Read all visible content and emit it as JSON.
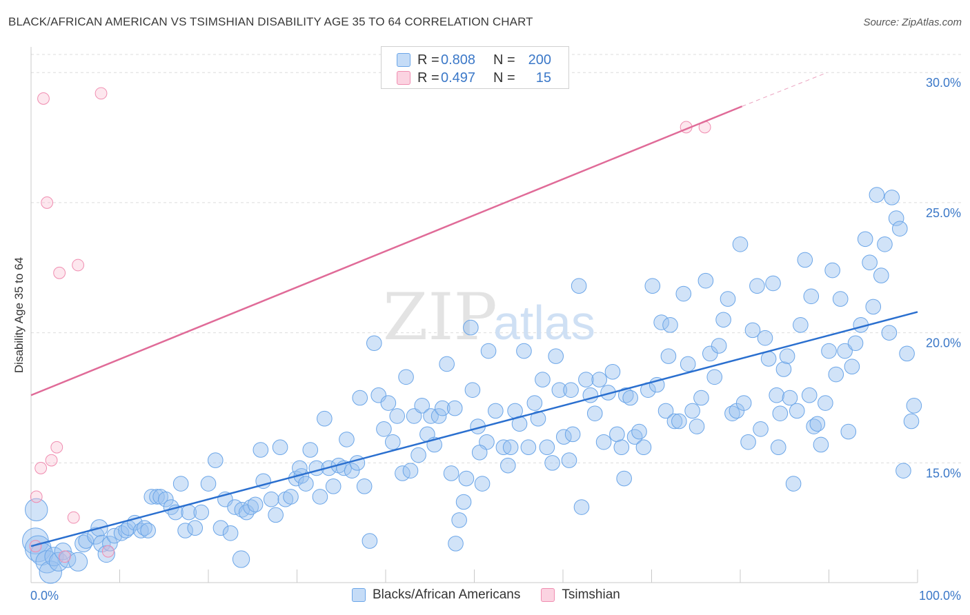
{
  "title": "BLACK/AFRICAN AMERICAN VS TSIMSHIAN DISABILITY AGE 35 TO 64 CORRELATION CHART",
  "source": "Source: ZipAtlas.com",
  "watermark": {
    "zip": "ZIP",
    "atlas": "atlas"
  },
  "legend": {
    "rows": [
      {
        "r_label": "R =",
        "r_value": "0.808",
        "n_label": "N =",
        "n_value": "200",
        "color": "#6aa5e8"
      },
      {
        "r_label": "R =",
        "r_value": "0.497",
        "n_label": "N =",
        "n_value": "15",
        "color": "#f08cb0"
      }
    ]
  },
  "bottom_legend": [
    "Blacks/African Americans",
    "Tsimshian"
  ],
  "chart_data": {
    "type": "scatter",
    "title": "BLACK/AFRICAN AMERICAN VS TSIMSHIAN DISABILITY AGE 35 TO 64 CORRELATION CHART",
    "xlabel": "",
    "ylabel": "Disability Age 35 to 64",
    "xlim": [
      0,
      100
    ],
    "ylim": [
      10.4,
      30.8
    ],
    "x_tick_labels": [
      "0.0%",
      "100.0%"
    ],
    "y_ticks": [
      15,
      20,
      25,
      30
    ],
    "y_tick_labels": [
      "15.0%",
      "20.0%",
      "25.0%",
      "30.0%"
    ],
    "grid": true,
    "legend_position": "top-center",
    "series": [
      {
        "name": "Blacks/African Americans",
        "color": "#6aa5e8",
        "r": 0.808,
        "n": 200,
        "trend": {
          "x": [
            0,
            100
          ],
          "y": [
            11.8,
            20.8
          ]
        },
        "points": [
          [
            0.5,
            12.0,
            14
          ],
          [
            0.8,
            11.7,
            14
          ],
          [
            1.2,
            11.5,
            12
          ],
          [
            1.8,
            11.2,
            12
          ],
          [
            2.2,
            10.8,
            12
          ],
          [
            2.6,
            11.4,
            10
          ],
          [
            3.1,
            11.2,
            10
          ],
          [
            3.6,
            11.6,
            9
          ],
          [
            4.1,
            11.3,
            9
          ],
          [
            5.3,
            11.2,
            10
          ],
          [
            0.6,
            13.2,
            12
          ],
          [
            5.9,
            11.9,
            9
          ],
          [
            6.2,
            12.0,
            8
          ],
          [
            7.3,
            12.2,
            9
          ],
          [
            7.7,
            12.5,
            9
          ],
          [
            8.0,
            11.9,
            9
          ],
          [
            8.5,
            11.5,
            9
          ],
          [
            8.9,
            11.9,
            8
          ],
          [
            9.4,
            12.2,
            8
          ],
          [
            10.2,
            12.3,
            8
          ],
          [
            10.7,
            12.4,
            8
          ],
          [
            11.0,
            12.5,
            8
          ],
          [
            11.7,
            12.7,
            8
          ],
          [
            12.4,
            12.4,
            8
          ],
          [
            12.8,
            12.5,
            8
          ],
          [
            13.2,
            12.4,
            8
          ],
          [
            13.6,
            13.7,
            8
          ],
          [
            14.2,
            13.7,
            8
          ],
          [
            14.6,
            13.7,
            8
          ],
          [
            15.2,
            13.6,
            8
          ],
          [
            15.8,
            13.3,
            8
          ],
          [
            16.3,
            13.1,
            8
          ],
          [
            16.9,
            14.2,
            8
          ],
          [
            17.4,
            12.4,
            8
          ],
          [
            17.8,
            13.1,
            8
          ],
          [
            18.5,
            12.5,
            8
          ],
          [
            19.2,
            13.1,
            8
          ],
          [
            20.0,
            14.2,
            8
          ],
          [
            20.8,
            15.1,
            8
          ],
          [
            21.4,
            12.5,
            8
          ],
          [
            21.9,
            13.6,
            8
          ],
          [
            22.5,
            12.3,
            8
          ],
          [
            23.0,
            13.3,
            8
          ],
          [
            23.8,
            13.2,
            8
          ],
          [
            24.3,
            13.1,
            8
          ],
          [
            24.8,
            13.3,
            8
          ],
          [
            25.3,
            13.4,
            8
          ],
          [
            25.9,
            15.5,
            8
          ],
          [
            26.2,
            14.3,
            8
          ],
          [
            27.1,
            13.6,
            8
          ],
          [
            27.6,
            13.0,
            8
          ],
          [
            28.1,
            15.6,
            8
          ],
          [
            28.7,
            13.6,
            8
          ],
          [
            29.3,
            13.7,
            8
          ],
          [
            29.9,
            14.4,
            8
          ],
          [
            30.5,
            14.5,
            8
          ],
          [
            31.0,
            14.2,
            8
          ],
          [
            31.5,
            15.5,
            8
          ],
          [
            32.2,
            14.8,
            8
          ],
          [
            32.6,
            13.7,
            8
          ],
          [
            33.1,
            16.7,
            8
          ],
          [
            33.6,
            14.8,
            8
          ],
          [
            34.1,
            14.1,
            8
          ],
          [
            34.7,
            14.9,
            8
          ],
          [
            35.3,
            14.8,
            8
          ],
          [
            35.6,
            15.9,
            8
          ],
          [
            36.2,
            14.7,
            8
          ],
          [
            36.8,
            15.0,
            8
          ],
          [
            37.1,
            17.5,
            8
          ],
          [
            37.6,
            14.1,
            8
          ],
          [
            38.2,
            12.0,
            8
          ],
          [
            38.7,
            19.6,
            8
          ],
          [
            39.2,
            17.6,
            8
          ],
          [
            39.8,
            16.3,
            8
          ],
          [
            40.3,
            17.3,
            8
          ],
          [
            40.8,
            15.8,
            8
          ],
          [
            41.3,
            16.8,
            8
          ],
          [
            41.9,
            14.6,
            8
          ],
          [
            42.3,
            18.3,
            8
          ],
          [
            42.8,
            14.7,
            8
          ],
          [
            43.2,
            16.8,
            8
          ],
          [
            43.7,
            15.3,
            8
          ],
          [
            44.1,
            17.2,
            8
          ],
          [
            44.7,
            16.1,
            8
          ],
          [
            45.1,
            16.8,
            8
          ],
          [
            45.5,
            15.7,
            8
          ],
          [
            46.0,
            16.8,
            8
          ],
          [
            46.4,
            17.1,
            8
          ],
          [
            46.9,
            18.8,
            8
          ],
          [
            47.4,
            14.6,
            8
          ],
          [
            47.8,
            17.1,
            8
          ],
          [
            48.3,
            12.8,
            8
          ],
          [
            48.8,
            13.5,
            8
          ],
          [
            49.1,
            14.4,
            8
          ],
          [
            49.6,
            20.2,
            8
          ],
          [
            49.8,
            17.8,
            8
          ],
          [
            50.4,
            16.4,
            8
          ],
          [
            50.9,
            14.2,
            8
          ],
          [
            51.4,
            15.8,
            8
          ],
          [
            51.6,
            19.3,
            8
          ],
          [
            52.4,
            17.0,
            8
          ],
          [
            53.3,
            15.6,
            8
          ],
          [
            53.8,
            14.9,
            8
          ],
          [
            54.1,
            15.6,
            8
          ],
          [
            54.6,
            17.0,
            8
          ],
          [
            55.1,
            16.5,
            8
          ],
          [
            55.6,
            19.3,
            8
          ],
          [
            56.1,
            15.6,
            8
          ],
          [
            56.8,
            17.3,
            8
          ],
          [
            57.2,
            16.7,
            8
          ],
          [
            57.7,
            18.2,
            8
          ],
          [
            58.2,
            15.6,
            8
          ],
          [
            58.8,
            15.0,
            8
          ],
          [
            59.2,
            19.1,
            8
          ],
          [
            59.6,
            17.8,
            8
          ],
          [
            60.1,
            16.0,
            8
          ],
          [
            60.7,
            15.1,
            8
          ],
          [
            61.1,
            16.1,
            8
          ],
          [
            61.8,
            21.8,
            8
          ],
          [
            62.1,
            13.3,
            8
          ],
          [
            62.6,
            18.2,
            8
          ],
          [
            63.1,
            17.6,
            8
          ],
          [
            63.6,
            16.9,
            8
          ],
          [
            64.1,
            18.2,
            8
          ],
          [
            64.6,
            15.8,
            8
          ],
          [
            65.1,
            17.7,
            8
          ],
          [
            65.6,
            18.5,
            8
          ],
          [
            66.1,
            16.1,
            8
          ],
          [
            66.6,
            15.6,
            8
          ],
          [
            67.1,
            17.6,
            8
          ],
          [
            67.6,
            17.5,
            8
          ],
          [
            68.1,
            16.0,
            8
          ],
          [
            68.6,
            16.2,
            8
          ],
          [
            69.1,
            15.6,
            8
          ],
          [
            69.6,
            17.8,
            8
          ],
          [
            70.1,
            21.8,
            8
          ],
          [
            70.6,
            18.0,
            8
          ],
          [
            71.1,
            20.4,
            8
          ],
          [
            71.6,
            17.0,
            8
          ],
          [
            72.1,
            20.3,
            8
          ],
          [
            72.6,
            16.6,
            8
          ],
          [
            73.1,
            16.6,
            8
          ],
          [
            73.6,
            21.5,
            8
          ],
          [
            74.1,
            18.8,
            8
          ],
          [
            74.6,
            17.0,
            8
          ],
          [
            75.1,
            16.4,
            8
          ],
          [
            75.6,
            17.5,
            8
          ],
          [
            76.1,
            22.0,
            8
          ],
          [
            76.6,
            19.2,
            8
          ],
          [
            77.1,
            18.3,
            8
          ],
          [
            77.6,
            19.5,
            8
          ],
          [
            78.1,
            20.5,
            8
          ],
          [
            78.6,
            21.3,
            8
          ],
          [
            79.1,
            16.9,
            8
          ],
          [
            79.6,
            17.0,
            8
          ],
          [
            80.0,
            23.4,
            8
          ],
          [
            80.4,
            17.3,
            8
          ],
          [
            80.9,
            15.8,
            8
          ],
          [
            81.4,
            20.1,
            8
          ],
          [
            81.9,
            21.8,
            8
          ],
          [
            82.3,
            16.3,
            8
          ],
          [
            82.8,
            19.8,
            8
          ],
          [
            83.2,
            19.0,
            8
          ],
          [
            83.7,
            21.9,
            8
          ],
          [
            84.1,
            17.6,
            8
          ],
          [
            84.5,
            16.9,
            8
          ],
          [
            84.9,
            18.6,
            8
          ],
          [
            85.3,
            19.1,
            8
          ],
          [
            85.6,
            17.5,
            8
          ],
          [
            86.0,
            14.2,
            8
          ],
          [
            86.4,
            17.0,
            8
          ],
          [
            86.8,
            20.3,
            8
          ],
          [
            87.3,
            22.8,
            8
          ],
          [
            87.8,
            17.6,
            8
          ],
          [
            88.3,
            16.4,
            8
          ],
          [
            88.7,
            16.5,
            8
          ],
          [
            89.1,
            15.7,
            8
          ],
          [
            89.6,
            17.3,
            8
          ],
          [
            90.0,
            19.3,
            8
          ],
          [
            90.4,
            22.4,
            8
          ],
          [
            90.8,
            18.4,
            8
          ],
          [
            91.3,
            21.3,
            8
          ],
          [
            91.8,
            19.3,
            8
          ],
          [
            92.2,
            16.2,
            8
          ],
          [
            92.6,
            18.7,
            8
          ],
          [
            93.0,
            19.6,
            8
          ],
          [
            93.6,
            20.3,
            8
          ],
          [
            94.1,
            23.6,
            8
          ],
          [
            94.6,
            22.7,
            8
          ],
          [
            95.0,
            21.0,
            8
          ],
          [
            95.4,
            25.3,
            8
          ],
          [
            95.9,
            22.2,
            8
          ],
          [
            96.3,
            23.4,
            8
          ],
          [
            96.8,
            20.0,
            8
          ],
          [
            97.1,
            25.2,
            8
          ],
          [
            97.6,
            24.4,
            8
          ],
          [
            98.0,
            24.0,
            8
          ],
          [
            98.4,
            14.7,
            8
          ],
          [
            98.8,
            19.2,
            8
          ],
          [
            99.3,
            16.6,
            8
          ],
          [
            99.6,
            17.2,
            8
          ],
          [
            23.7,
            11.3,
            9
          ],
          [
            47.9,
            11.9,
            8
          ],
          [
            30.3,
            14.8,
            8
          ],
          [
            50.6,
            15.4,
            8
          ],
          [
            60.9,
            17.8,
            8
          ],
          [
            66.9,
            14.4,
            8
          ],
          [
            71.9,
            19.1,
            8
          ],
          [
            84.3,
            15.6,
            8
          ],
          [
            88.0,
            21.4,
            8
          ]
        ]
      },
      {
        "name": "Tsimshian",
        "color": "#f08cb0",
        "r": 0.497,
        "n": 15,
        "trend": {
          "x": [
            0,
            80.2
          ],
          "y": [
            17.6,
            28.7
          ]
        },
        "trend_ext": {
          "x": [
            80.2,
            89.8
          ],
          "y": [
            28.7,
            30.0
          ]
        },
        "points": [
          [
            1.4,
            29.0,
            8
          ],
          [
            7.9,
            29.2,
            8
          ],
          [
            1.8,
            25.0,
            8
          ],
          [
            3.2,
            22.3,
            8
          ],
          [
            5.3,
            22.6,
            8
          ],
          [
            73.9,
            27.9,
            8
          ],
          [
            76.0,
            27.9,
            8
          ],
          [
            2.9,
            15.6,
            8
          ],
          [
            2.3,
            15.1,
            8
          ],
          [
            1.1,
            14.8,
            8
          ],
          [
            0.6,
            13.7,
            8
          ],
          [
            4.8,
            12.9,
            8
          ],
          [
            0.5,
            11.8,
            8
          ],
          [
            3.8,
            11.4,
            8
          ],
          [
            8.7,
            11.6,
            8
          ]
        ]
      }
    ]
  }
}
